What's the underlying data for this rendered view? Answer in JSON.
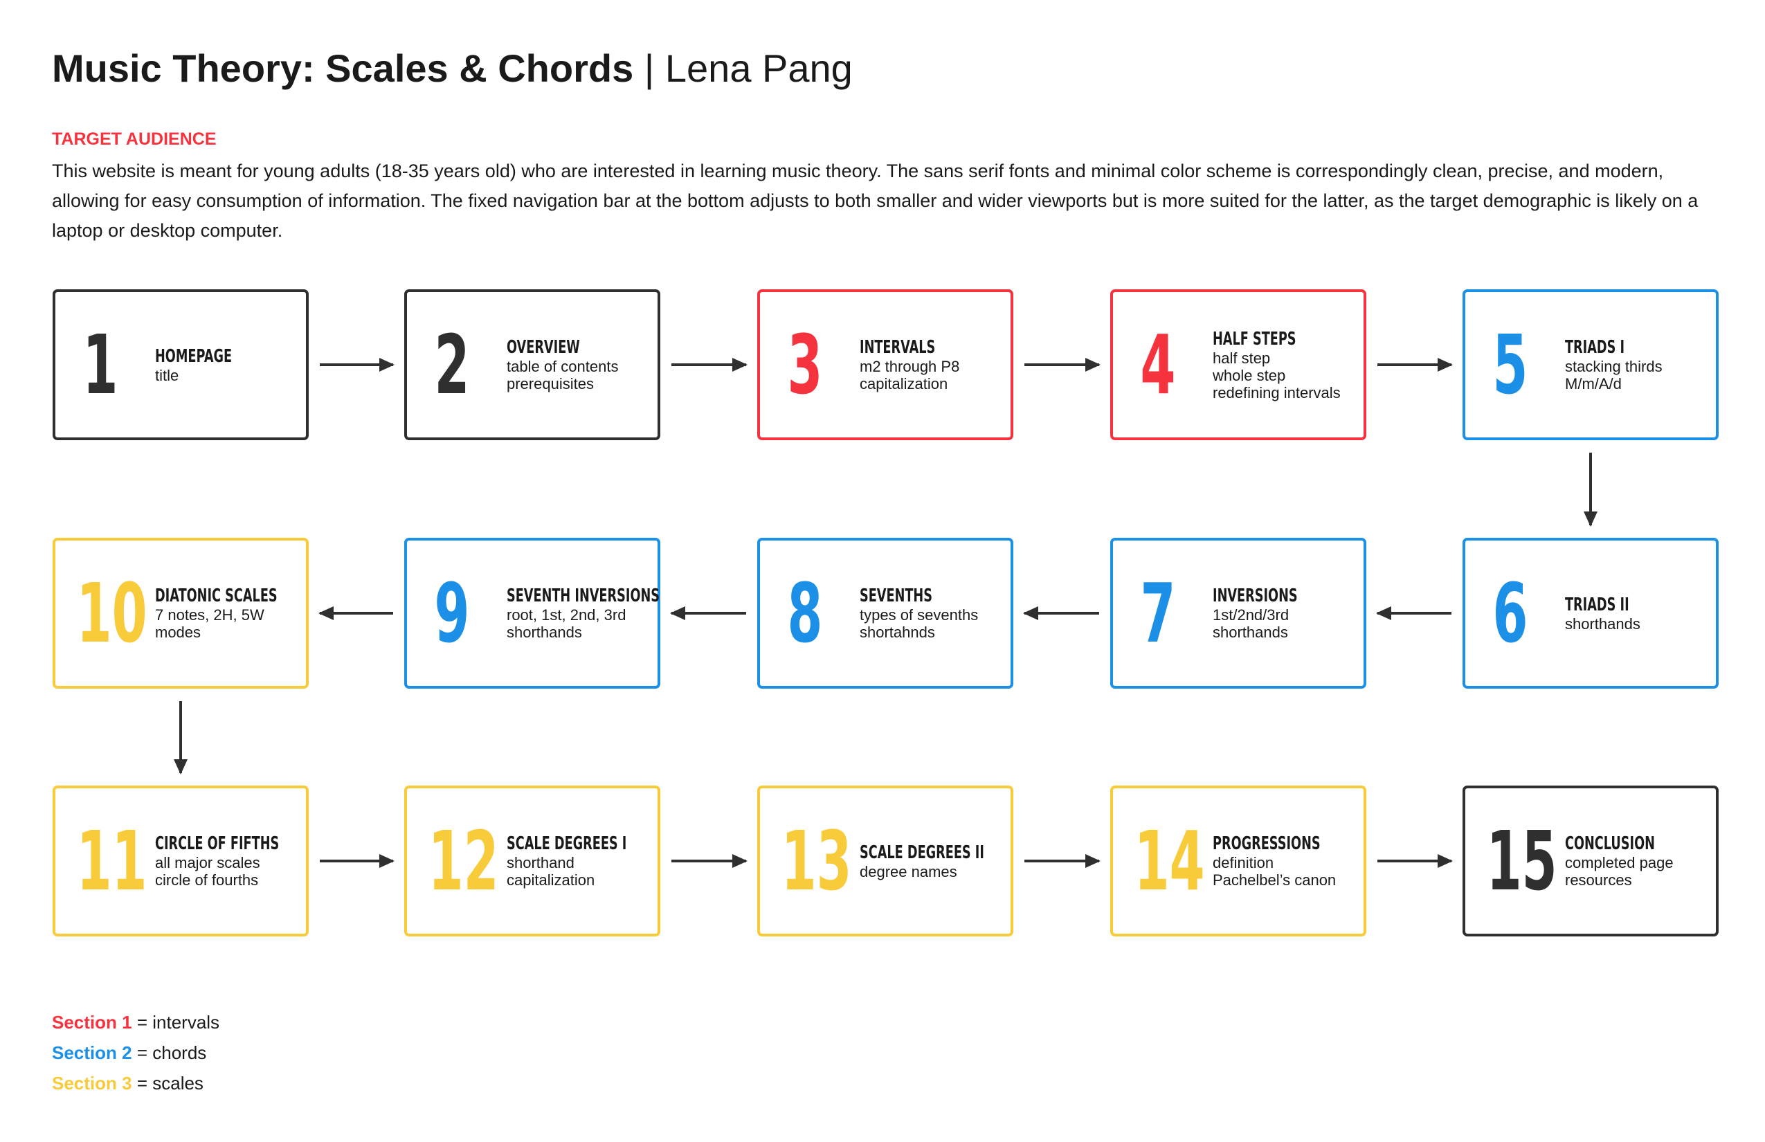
{
  "header": {
    "title": "Music Theory: Scales & Chords",
    "separator": "|",
    "author": "Lena Pang"
  },
  "audience": {
    "label": "TARGET AUDIENCE",
    "text": "This website is meant for young adults (18-35 years old) who are interested in learning music theory. The sans serif fonts and minimal color scheme is correspondingly clean, precise, and modern, allowing for easy consumption of information. The fixed navigation bar at the bottom adjusts to both smaller and wider viewports but is more suited for the latter, as the target demographic is likely on a laptop or desktop computer."
  },
  "colors": {
    "black": "#2f2f2f",
    "red": "#f5333f",
    "blue": "#1b90e6",
    "yellow": "#f8cb3a"
  },
  "pages": [
    {
      "num": "1",
      "label": "HOMEPAGE",
      "lines": [
        "title"
      ],
      "color": "black"
    },
    {
      "num": "2",
      "label": "OVERVIEW",
      "lines": [
        "table of contents",
        "prerequisites"
      ],
      "color": "black"
    },
    {
      "num": "3",
      "label": "INTERVALS",
      "lines": [
        "m2 through P8",
        "capitalization"
      ],
      "color": "red"
    },
    {
      "num": "4",
      "label": "HALF STEPS",
      "lines": [
        "half step",
        "whole step",
        "redefining intervals"
      ],
      "color": "red"
    },
    {
      "num": "5",
      "label": "TRIADS I",
      "lines": [
        "stacking thirds",
        "M/m/A/d"
      ],
      "color": "blue"
    },
    {
      "num": "6",
      "label": "TRIADS II",
      "lines": [
        "shorthands"
      ],
      "color": "blue"
    },
    {
      "num": "7",
      "label": "INVERSIONS",
      "lines": [
        "1st/2nd/3rd",
        "shorthands"
      ],
      "color": "blue"
    },
    {
      "num": "8",
      "label": "SEVENTHS",
      "lines": [
        "types of sevenths",
        "shortahnds"
      ],
      "color": "blue"
    },
    {
      "num": "9",
      "label": "SEVENTH INVERSIONS",
      "lines": [
        "root, 1st, 2nd, 3rd",
        "shorthands"
      ],
      "color": "blue"
    },
    {
      "num": "10",
      "label": "DIATONIC SCALES",
      "lines": [
        "7 notes, 2H, 5W",
        "modes"
      ],
      "color": "yellow"
    },
    {
      "num": "11",
      "label": "CIRCLE OF FIFTHS",
      "lines": [
        "all major scales",
        "circle of fourths"
      ],
      "color": "yellow"
    },
    {
      "num": "12",
      "label": "SCALE DEGREES I",
      "lines": [
        "shorthand",
        "capitalization"
      ],
      "color": "yellow"
    },
    {
      "num": "13",
      "label": "SCALE DEGREES II",
      "lines": [
        "degree names"
      ],
      "color": "yellow"
    },
    {
      "num": "14",
      "label": "PROGRESSIONS",
      "lines": [
        "definition",
        "Pachelbel’s canon"
      ],
      "color": "yellow"
    },
    {
      "num": "15",
      "label": "CONCLUSION",
      "lines": [
        "completed page",
        "resources"
      ],
      "color": "black"
    }
  ],
  "legend": [
    {
      "name": "Section 1",
      "desc": "= intervals",
      "color": "red"
    },
    {
      "name": "Section 2",
      "desc": "= chords",
      "color": "blue"
    },
    {
      "name": "Section 3",
      "desc": "= scales",
      "color": "yellow"
    }
  ]
}
